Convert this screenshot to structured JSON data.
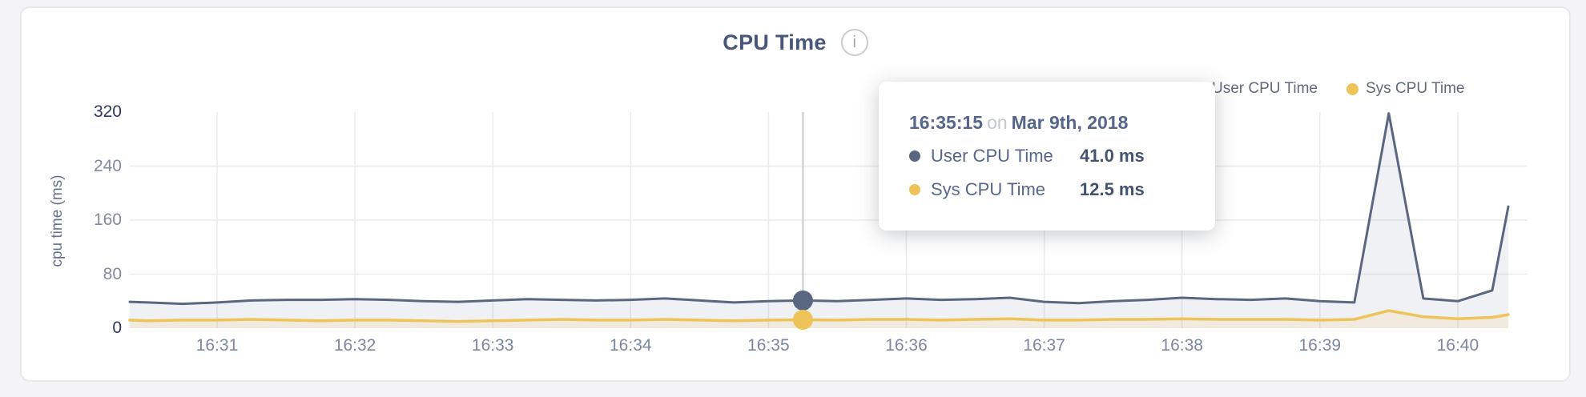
{
  "header": {
    "title": "CPU Time",
    "info_glyph": "i"
  },
  "legend": {
    "items": [
      {
        "label": "User CPU Time",
        "color": "#5a6780"
      },
      {
        "label": "Sys CPU Time",
        "color": "#eec458"
      }
    ]
  },
  "tooltip": {
    "time": "16:35:15",
    "connector": "on",
    "date": "Mar 9th, 2018",
    "rows": [
      {
        "label": "User CPU Time",
        "value": "41.0 ms",
        "color": "#5a6780"
      },
      {
        "label": "Sys CPU Time",
        "value": "12.5 ms",
        "color": "#eec458"
      }
    ]
  },
  "chart_data": {
    "type": "area",
    "title": "CPU Time",
    "xlabel": "",
    "ylabel": "cpu time (ms)",
    "ylim": [
      0,
      320
    ],
    "y_ticks": [
      0,
      80,
      160,
      240,
      320
    ],
    "x_range_seconds_after_16_30": [
      22,
      622
    ],
    "x_ticks": [
      {
        "label": "16:31",
        "t": 60
      },
      {
        "label": "16:32",
        "t": 120
      },
      {
        "label": "16:33",
        "t": 180
      },
      {
        "label": "16:34",
        "t": 240
      },
      {
        "label": "16:35",
        "t": 300
      },
      {
        "label": "16:36",
        "t": 360
      },
      {
        "label": "16:37",
        "t": 420
      },
      {
        "label": "16:38",
        "t": 480
      },
      {
        "label": "16:39",
        "t": 540
      },
      {
        "label": "16:40",
        "t": 600
      }
    ],
    "grid": true,
    "legend_position": "top-right",
    "grid_color": "#ebebec",
    "crosshair_color": "#c6c9ce",
    "series": [
      {
        "name": "User CPU Time",
        "color": "#5a6780",
        "fill": "rgba(90,103,132,0.09)",
        "unit": "ms",
        "points": [
          [
            22,
            39
          ],
          [
            30,
            38
          ],
          [
            45,
            36
          ],
          [
            60,
            38
          ],
          [
            75,
            41
          ],
          [
            90,
            42
          ],
          [
            105,
            42
          ],
          [
            120,
            43
          ],
          [
            135,
            42
          ],
          [
            150,
            40
          ],
          [
            165,
            39
          ],
          [
            180,
            41
          ],
          [
            195,
            43
          ],
          [
            210,
            42
          ],
          [
            225,
            41
          ],
          [
            240,
            42
          ],
          [
            255,
            44
          ],
          [
            270,
            41
          ],
          [
            285,
            38
          ],
          [
            300,
            40
          ],
          [
            315,
            41
          ],
          [
            330,
            40
          ],
          [
            345,
            42
          ],
          [
            360,
            44
          ],
          [
            375,
            42
          ],
          [
            390,
            43
          ],
          [
            405,
            45
          ],
          [
            420,
            39
          ],
          [
            435,
            37
          ],
          [
            450,
            40
          ],
          [
            465,
            42
          ],
          [
            480,
            45
          ],
          [
            495,
            43
          ],
          [
            510,
            42
          ],
          [
            525,
            44
          ],
          [
            540,
            40
          ],
          [
            555,
            38
          ],
          [
            570,
            318
          ],
          [
            585,
            44
          ],
          [
            600,
            40
          ],
          [
            615,
            56
          ],
          [
            622,
            180
          ]
        ]
      },
      {
        "name": "Sys CPU Time",
        "color": "#eec458",
        "fill": "rgba(238,196,88,0.13)",
        "unit": "ms",
        "points": [
          [
            22,
            12
          ],
          [
            30,
            11
          ],
          [
            45,
            12
          ],
          [
            60,
            12
          ],
          [
            75,
            13
          ],
          [
            90,
            12
          ],
          [
            105,
            11
          ],
          [
            120,
            12
          ],
          [
            135,
            12
          ],
          [
            150,
            11
          ],
          [
            165,
            10
          ],
          [
            180,
            11
          ],
          [
            195,
            12
          ],
          [
            210,
            13
          ],
          [
            225,
            12
          ],
          [
            240,
            12
          ],
          [
            255,
            13
          ],
          [
            270,
            12
          ],
          [
            285,
            11
          ],
          [
            300,
            12
          ],
          [
            315,
            12.5
          ],
          [
            330,
            12
          ],
          [
            345,
            13
          ],
          [
            360,
            13
          ],
          [
            375,
            12
          ],
          [
            390,
            13
          ],
          [
            405,
            14
          ],
          [
            420,
            12
          ],
          [
            435,
            12
          ],
          [
            450,
            13
          ],
          [
            465,
            13
          ],
          [
            480,
            14
          ],
          [
            495,
            13
          ],
          [
            510,
            13
          ],
          [
            525,
            13
          ],
          [
            540,
            12
          ],
          [
            555,
            13
          ],
          [
            570,
            26
          ],
          [
            585,
            17
          ],
          [
            600,
            14
          ],
          [
            615,
            16
          ],
          [
            622,
            20
          ]
        ]
      }
    ],
    "highlight": {
      "t": 315,
      "time": "16:35:15",
      "values": [
        41.0,
        12.5
      ]
    }
  }
}
